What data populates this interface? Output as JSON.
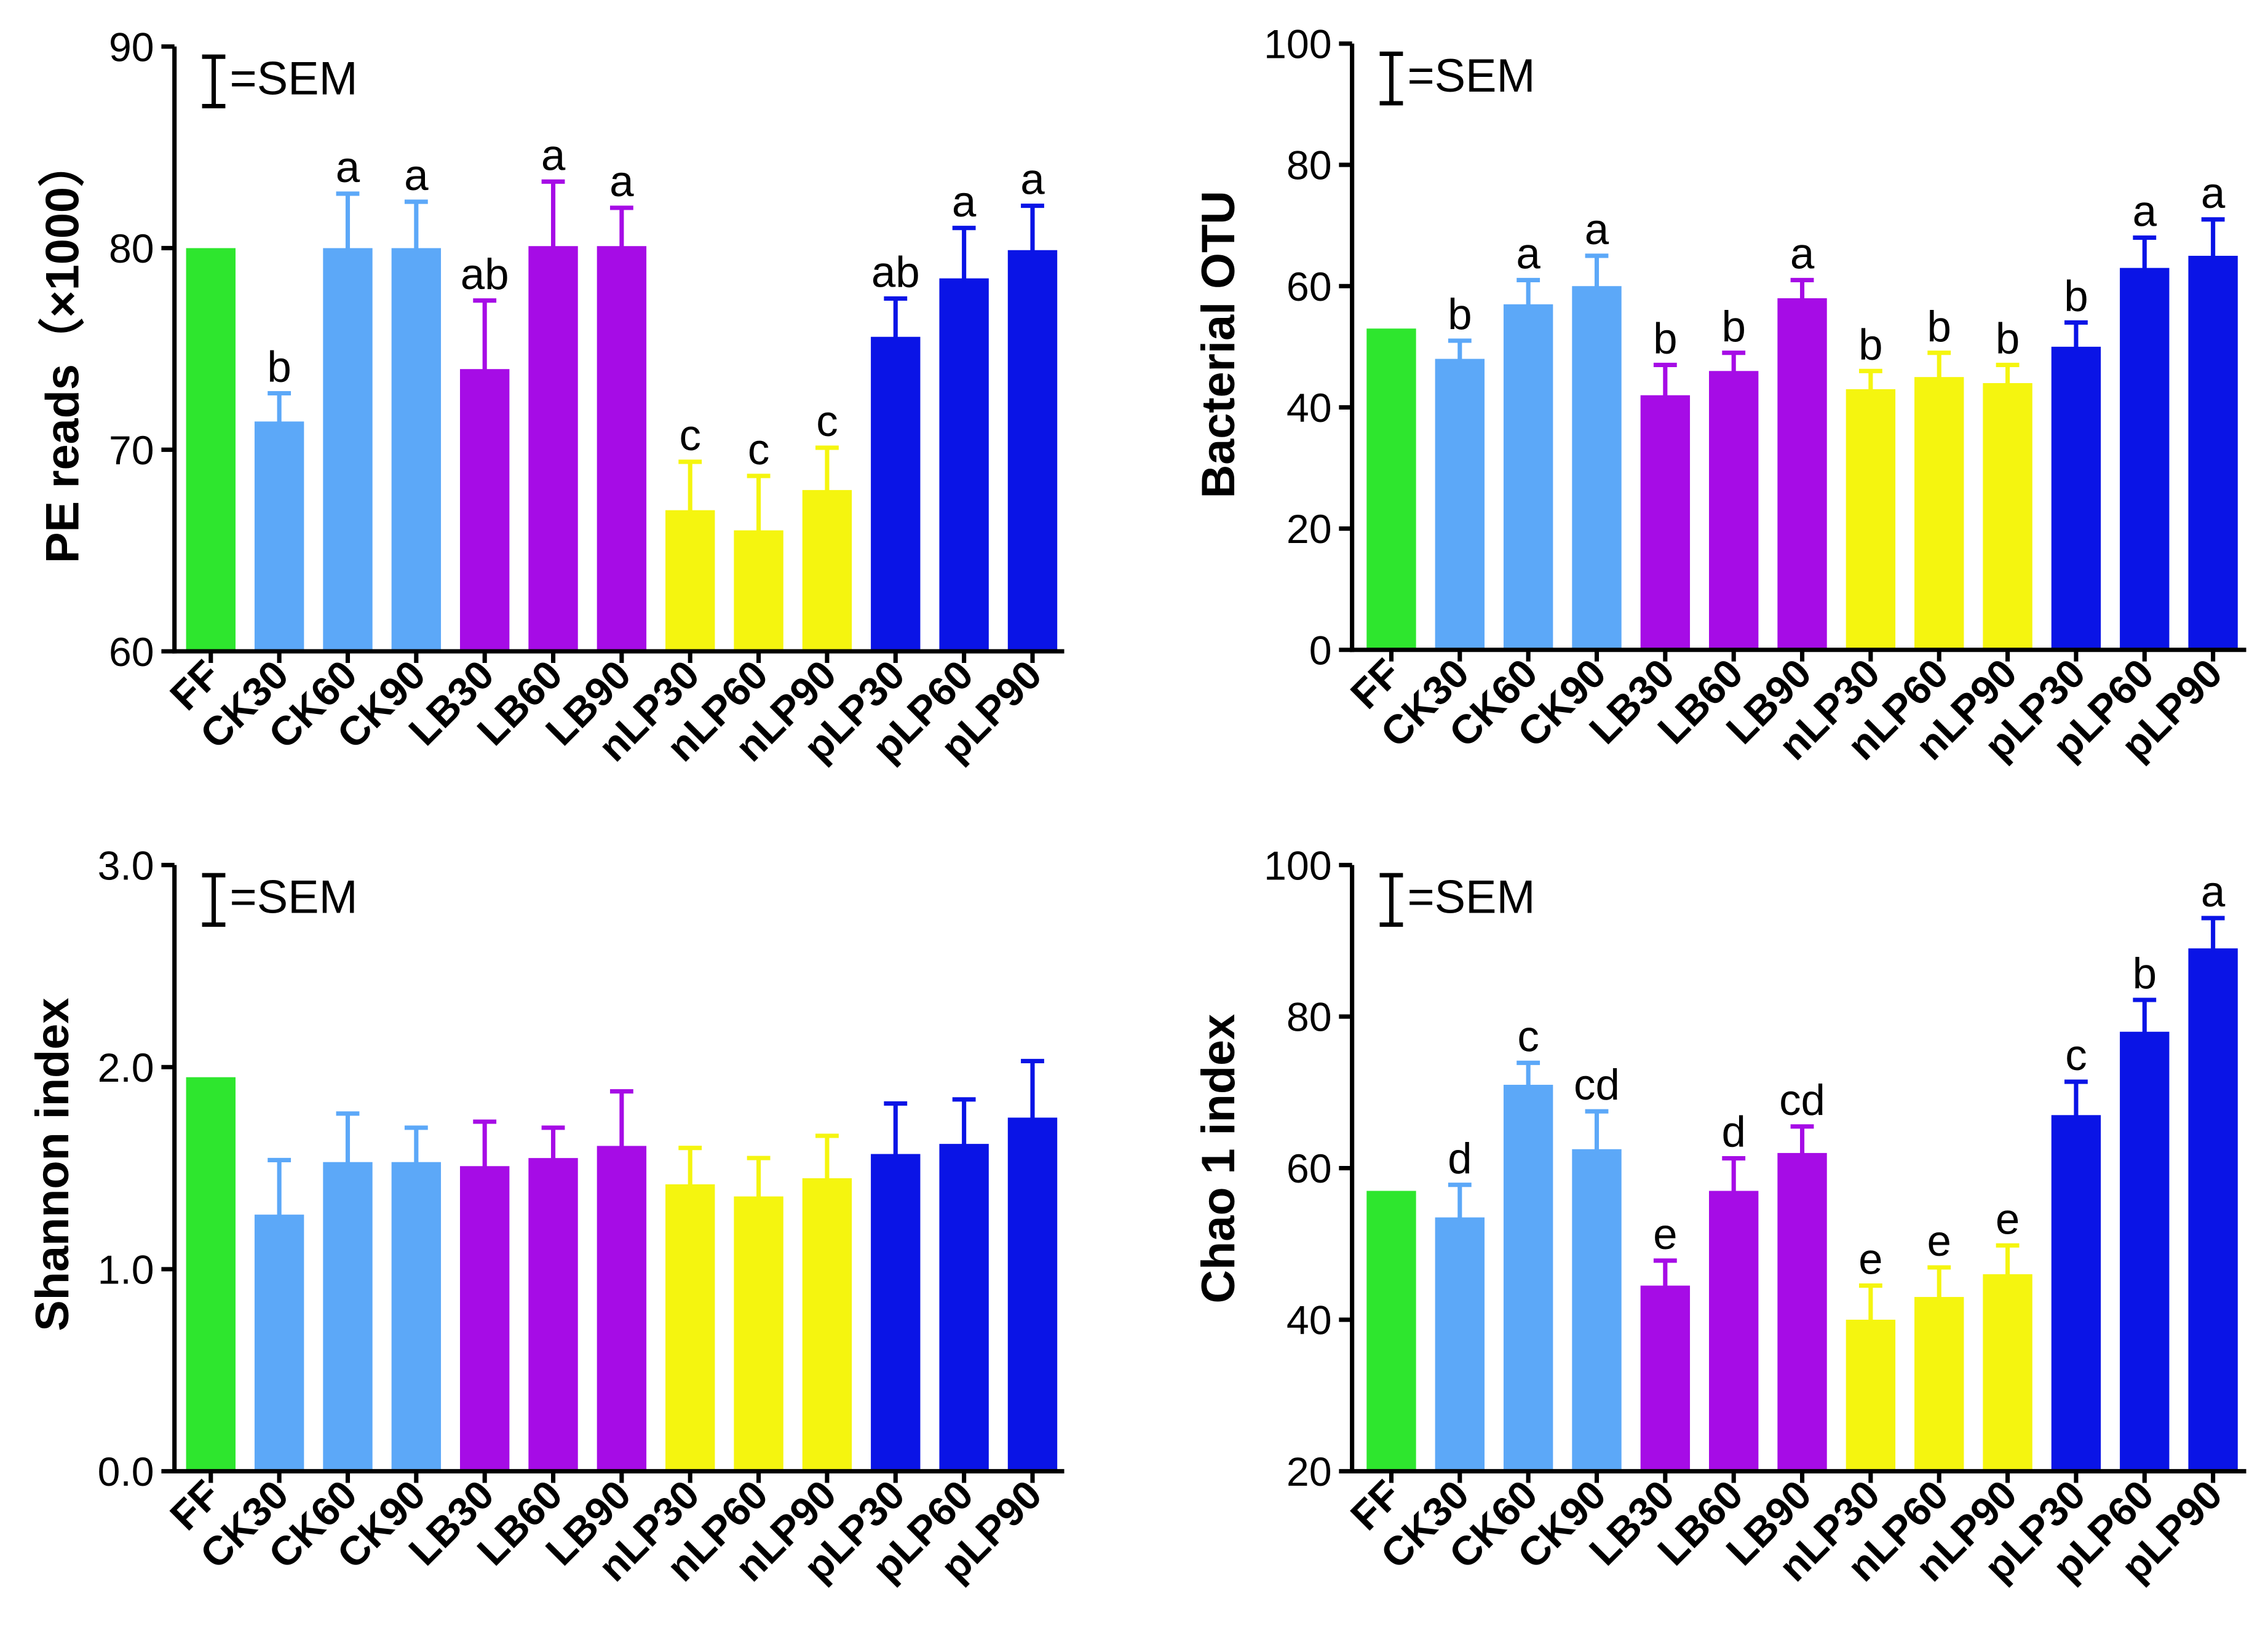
{
  "group_colors": {
    "FF": "#2ee62e",
    "CK": "#5ca8f8",
    "LB": "#a60ce6",
    "nLP": "#f5f50f",
    "pLP": "#0a14e6"
  },
  "chart_data": [
    {
      "type": "bar",
      "ylabel": "PE reads（×1000）",
      "legend": "=SEM",
      "ylim": [
        60,
        90
      ],
      "yticks": [
        "60",
        "70",
        "80",
        "90"
      ],
      "categories": [
        "FF",
        "CK30",
        "CK60",
        "CK90",
        "LB30",
        "LB60",
        "LB90",
        "nLP30",
        "nLP60",
        "nLP90",
        "pLP30",
        "pLP60",
        "pLP90"
      ],
      "values": [
        80.0,
        71.4,
        80.0,
        80.0,
        74.0,
        80.1,
        80.1,
        67.0,
        66.0,
        68.0,
        75.6,
        78.5,
        79.9
      ],
      "sem": [
        0,
        1.4,
        2.7,
        2.3,
        3.4,
        3.2,
        1.9,
        2.4,
        2.7,
        2.1,
        1.9,
        2.5,
        2.2
      ],
      "letters": [
        "",
        "b",
        "a",
        "a",
        "ab",
        "a",
        "a",
        "c",
        "c",
        "c",
        "ab",
        "a",
        "a"
      ]
    },
    {
      "type": "bar",
      "ylabel": "Bacterial OTU",
      "legend": "=SEM",
      "ylim": [
        0,
        100
      ],
      "yticks": [
        "0",
        "20",
        "40",
        "60",
        "80",
        "100"
      ],
      "categories": [
        "FF",
        "CK30",
        "CK60",
        "CK90",
        "LB30",
        "LB60",
        "LB90",
        "nLP30",
        "nLP60",
        "nLP90",
        "pLP30",
        "pLP60",
        "pLP90"
      ],
      "values": [
        53,
        48,
        57,
        60,
        42,
        46,
        58,
        43,
        45,
        44,
        50,
        63,
        65
      ],
      "sem": [
        0,
        3,
        4,
        5,
        5,
        3,
        3,
        3,
        4,
        3,
        4,
        5,
        6
      ],
      "letters": [
        "",
        "b",
        "a",
        "a",
        "b",
        "b",
        "a",
        "b",
        "b",
        "b",
        "b",
        "a",
        "a"
      ]
    },
    {
      "type": "bar",
      "ylabel": "Shannon index",
      "legend": "=SEM",
      "ylim": [
        0,
        3
      ],
      "yticks": [
        "0.0",
        "1.0",
        "2.0",
        "3.0"
      ],
      "categories": [
        "FF",
        "CK30",
        "CK60",
        "CK90",
        "LB30",
        "LB60",
        "LB90",
        "nLP30",
        "nLP60",
        "nLP90",
        "pLP30",
        "pLP60",
        "pLP90"
      ],
      "values": [
        1.95,
        1.27,
        1.53,
        1.53,
        1.51,
        1.55,
        1.61,
        1.42,
        1.36,
        1.45,
        1.57,
        1.62,
        1.75
      ],
      "sem": [
        0,
        0.27,
        0.24,
        0.17,
        0.22,
        0.15,
        0.27,
        0.18,
        0.19,
        0.21,
        0.25,
        0.22,
        0.28
      ]
    },
    {
      "type": "bar",
      "ylabel": "Chao 1 index",
      "legend": "=SEM",
      "ylim": [
        20,
        100
      ],
      "yticks": [
        "20",
        "40",
        "60",
        "80",
        "100"
      ],
      "categories": [
        "FF",
        "CK30",
        "CK60",
        "CK90",
        "LB30",
        "LB60",
        "LB90",
        "nLP30",
        "nLP60",
        "nLP90",
        "pLP30",
        "pLP60",
        "pLP90"
      ],
      "values": [
        57,
        53.5,
        71,
        62.5,
        44.5,
        57,
        62,
        40,
        43,
        46,
        67,
        78,
        89
      ],
      "sem": [
        0,
        4.3,
        2.9,
        5.0,
        3.3,
        4.3,
        3.5,
        4.5,
        3.9,
        3.8,
        4.4,
        4.2,
        4.0
      ],
      "letters": [
        "",
        "d",
        "c",
        "cd",
        "e",
        "d",
        "cd",
        "e",
        "e",
        "e",
        "c",
        "b",
        "a"
      ]
    }
  ]
}
